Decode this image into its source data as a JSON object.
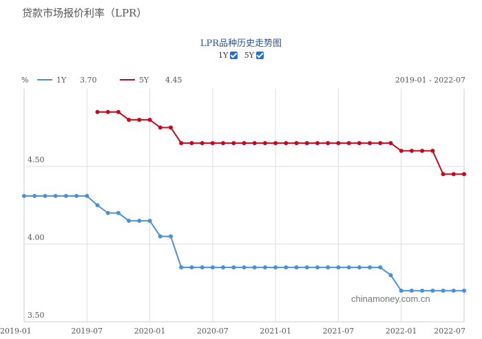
{
  "page": {
    "header": "贷款市场报价利率（LPR）",
    "watermark": "chinamoney.com.cn"
  },
  "toggles": [
    {
      "label": "1Y",
      "checked": true
    },
    {
      "label": "5Y",
      "checked": true
    }
  ],
  "legend": {
    "unit": "%",
    "items": [
      {
        "name": "1Y",
        "value": "3.70",
        "color": "#4a90d9"
      },
      {
        "name": "5Y",
        "value": "4.45",
        "color": "#d0021b"
      }
    ],
    "range": "2019-01 - 2022-07"
  },
  "chart_data": {
    "type": "line",
    "title": "LPR品种历史走势图",
    "ylim": [
      3.5,
      5.0
    ],
    "yticks": [
      "3.50",
      "4.00",
      "4.50"
    ],
    "ytick_values": [
      3.5,
      4.0,
      4.5
    ],
    "xticks": [
      "2019-01",
      "2019-07",
      "2020-01",
      "2020-07",
      "2021-01",
      "2021-07",
      "2022-01",
      "2022-07"
    ],
    "x": [
      "2019-01",
      "2019-02",
      "2019-03",
      "2019-04",
      "2019-05",
      "2019-06",
      "2019-07",
      "2019-08",
      "2019-09",
      "2019-10",
      "2019-11",
      "2019-12",
      "2020-01",
      "2020-02",
      "2020-03",
      "2020-04",
      "2020-05",
      "2020-06",
      "2020-07",
      "2020-08",
      "2020-09",
      "2020-10",
      "2020-11",
      "2020-12",
      "2021-01",
      "2021-02",
      "2021-03",
      "2021-04",
      "2021-05",
      "2021-06",
      "2021-07",
      "2021-08",
      "2021-09",
      "2021-10",
      "2021-11",
      "2021-12",
      "2022-01",
      "2022-02",
      "2022-03",
      "2022-04",
      "2022-05",
      "2022-06",
      "2022-07"
    ],
    "grid": true,
    "series": [
      {
        "name": "1Y",
        "color": "#4a90d9",
        "values": [
          4.31,
          4.31,
          4.31,
          4.31,
          4.31,
          4.31,
          4.31,
          4.25,
          4.2,
          4.2,
          4.15,
          4.15,
          4.15,
          4.05,
          4.05,
          3.85,
          3.85,
          3.85,
          3.85,
          3.85,
          3.85,
          3.85,
          3.85,
          3.85,
          3.85,
          3.85,
          3.85,
          3.85,
          3.85,
          3.85,
          3.85,
          3.85,
          3.85,
          3.85,
          3.85,
          3.8,
          3.7,
          3.7,
          3.7,
          3.7,
          3.7,
          3.7,
          3.7
        ]
      },
      {
        "name": "5Y",
        "color": "#d0021b",
        "values": [
          null,
          null,
          null,
          null,
          null,
          null,
          null,
          4.85,
          4.85,
          4.85,
          4.8,
          4.8,
          4.8,
          4.75,
          4.75,
          4.65,
          4.65,
          4.65,
          4.65,
          4.65,
          4.65,
          4.65,
          4.65,
          4.65,
          4.65,
          4.65,
          4.65,
          4.65,
          4.65,
          4.65,
          4.65,
          4.65,
          4.65,
          4.65,
          4.65,
          4.65,
          4.6,
          4.6,
          4.6,
          4.6,
          4.45,
          4.45,
          4.45
        ]
      }
    ]
  }
}
